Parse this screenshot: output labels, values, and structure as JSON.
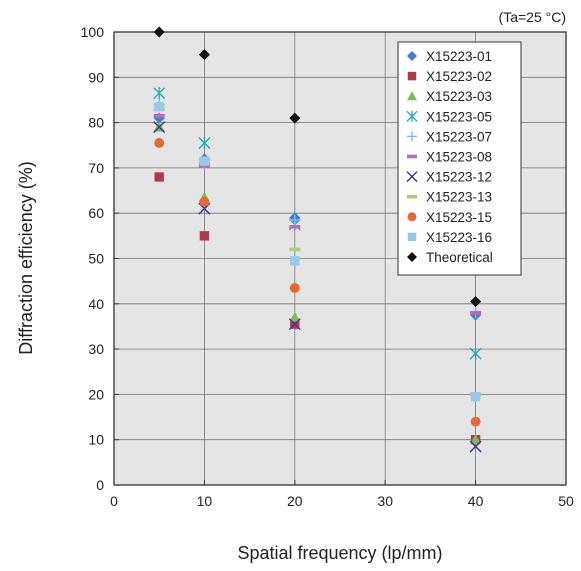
{
  "chart_data": {
    "type": "scatter",
    "xlabel": "Spatial frequency (lp/mm)",
    "ylabel": "Diffraction efficiency (%)",
    "condition": "(Ta=25 °C)",
    "xlim": [
      0,
      50
    ],
    "ylim": [
      0,
      100
    ],
    "xticks": [
      0,
      10,
      20,
      30,
      40,
      50
    ],
    "yticks": [
      0,
      10,
      20,
      30,
      40,
      50,
      60,
      70,
      80,
      90,
      100
    ],
    "grid": true,
    "legend_position": "top-right",
    "series": [
      {
        "name": "X15223-01",
        "marker": "diamond",
        "color": "#3a7fd0",
        "points": [
          [
            5,
            81
          ],
          [
            10,
            72
          ],
          [
            20,
            59
          ],
          [
            40,
            37.5
          ]
        ]
      },
      {
        "name": "X15223-02",
        "marker": "square",
        "color": "#b23850",
        "points": [
          [
            5,
            68
          ],
          [
            10,
            55
          ],
          [
            20,
            35.5
          ],
          [
            40,
            10
          ]
        ]
      },
      {
        "name": "X15223-03",
        "marker": "triangle",
        "color": "#84b85a",
        "points": [
          [
            5,
            79
          ],
          [
            10,
            63.5
          ],
          [
            20,
            37
          ],
          [
            40,
            10
          ]
        ]
      },
      {
        "name": "X15223-05",
        "marker": "asterisk",
        "color": "#1fa9b5",
        "points": [
          [
            5,
            86.5
          ],
          [
            10,
            75.5
          ],
          [
            20,
            57.5
          ],
          [
            40,
            29
          ]
        ]
      },
      {
        "name": "X15223-07",
        "marker": "plus",
        "color": "#8fb6e0",
        "points": [
          [
            5,
            84
          ],
          [
            10,
            71
          ],
          [
            20,
            58.5
          ],
          [
            40,
            38
          ]
        ]
      },
      {
        "name": "X15223-08",
        "marker": "dash",
        "color": "#c566bd",
        "points": [
          [
            5,
            81.5
          ],
          [
            10,
            70.5
          ],
          [
            20,
            57
          ],
          [
            40,
            38
          ]
        ]
      },
      {
        "name": "X15223-12",
        "marker": "x",
        "color": "#2e3a9a",
        "points": [
          [
            5,
            79
          ],
          [
            10,
            61
          ],
          [
            20,
            35.5
          ],
          [
            40,
            8.5
          ]
        ]
      },
      {
        "name": "X15223-13",
        "marker": "dash",
        "color": "#a9cf7d",
        "points": [
          [
            5,
            83
          ],
          [
            10,
            71.5
          ],
          [
            20,
            52
          ],
          [
            40,
            20
          ]
        ]
      },
      {
        "name": "X15223-15",
        "marker": "circle",
        "color": "#e8673a",
        "points": [
          [
            5,
            75.5
          ],
          [
            10,
            62.5
          ],
          [
            20,
            43.5
          ],
          [
            40,
            14
          ]
        ]
      },
      {
        "name": "X15223-16",
        "marker": "square",
        "color": "#98c9e6",
        "points": [
          [
            5,
            83.5
          ],
          [
            10,
            71.5
          ],
          [
            20,
            49.5
          ],
          [
            40,
            19.5
          ]
        ]
      },
      {
        "name": "Theoretical",
        "marker": "diamond",
        "color": "#111111",
        "points": [
          [
            5,
            100
          ],
          [
            10,
            95
          ],
          [
            20,
            81
          ],
          [
            40,
            40.5
          ]
        ]
      }
    ]
  }
}
